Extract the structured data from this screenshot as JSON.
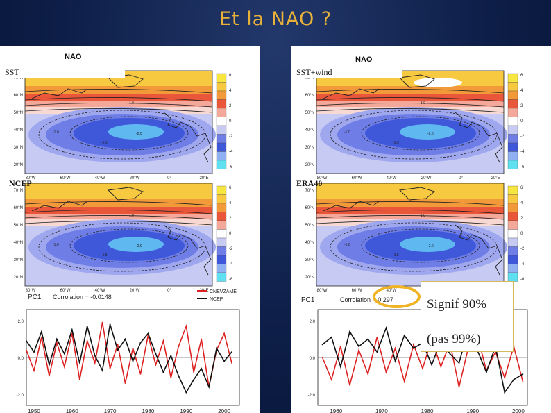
{
  "slide": {
    "title": "Et la NAO ?"
  },
  "maps": [
    {
      "label": "SST",
      "plot_title": "NAO"
    },
    {
      "label": "SST+wind",
      "plot_title": "NAO"
    },
    {
      "label": "NCEP",
      "plot_title": ""
    },
    {
      "label": "ERA40",
      "plot_title": ""
    }
  ],
  "lat_ticks": [
    "70°N",
    "60°N",
    "50°N",
    "40°N",
    "30°N",
    "20°N"
  ],
  "lon_ticks": [
    "80°W",
    "60°W",
    "40°W",
    "20°W",
    "0°",
    "20°E"
  ],
  "colorbar_ticks": [
    "6",
    "4",
    "2",
    "0",
    "-2",
    "-4",
    "-6"
  ],
  "contour_labels": [
    "1.0",
    "-1.0",
    "-1.5",
    "-2.0"
  ],
  "colors": {
    "title": "#e8b23a",
    "highlight": "#f0b323",
    "series_red": "#d22",
    "series_black": "#111"
  },
  "left_panel": {
    "pc_label": "PC1",
    "correlation_text": "Corrolation  =  -0.0148",
    "legend": [
      "CNEVZAME",
      "NCEP"
    ]
  },
  "right_panel": {
    "pc_label": "PC1",
    "correlation_text": "Corrolation  =  0.297"
  },
  "signif": {
    "line1": "Signif 90%",
    "line2": "(pas 99%)"
  },
  "chart_data": [
    {
      "type": "line",
      "x_ticks": [
        "1950",
        "1960",
        "1970",
        "1980",
        "1990",
        "2000"
      ],
      "y_ticks": [
        "2.0",
        "0.0",
        "-2.0"
      ],
      "ylim": [
        -2.6,
        2.6
      ],
      "xlim": [
        1948,
        2004
      ],
      "series": [
        {
          "name": "CNEVZAME",
          "color": "#d22",
          "x": [
            1948,
            1950,
            1952,
            1954,
            1956,
            1958,
            1960,
            1962,
            1964,
            1966,
            1968,
            1970,
            1972,
            1974,
            1976,
            1978,
            1980,
            1982,
            1984,
            1986,
            1988,
            1990,
            1992,
            1994,
            1996,
            1998,
            2000,
            2002
          ],
          "values": [
            0.4,
            -0.7,
            1.1,
            -1.0,
            0.8,
            -0.5,
            1.3,
            -1.2,
            0.9,
            -0.3,
            1.9,
            -0.6,
            0.7,
            -1.4,
            0.5,
            -0.9,
            1.2,
            -0.4,
            0.9,
            -1.1,
            0.6,
            1.7,
            -0.8,
            1.0,
            -1.6,
            0.4,
            1.3,
            -0.3
          ]
        },
        {
          "name": "NCEP",
          "color": "#111",
          "x": [
            1948,
            1950,
            1952,
            1954,
            1956,
            1958,
            1960,
            1962,
            1964,
            1966,
            1968,
            1970,
            1972,
            1974,
            1976,
            1978,
            1980,
            1982,
            1984,
            1986,
            1988,
            1990,
            1992,
            1994,
            1996,
            1998,
            2000,
            2002
          ],
          "values": [
            0.9,
            0.3,
            1.4,
            -0.4,
            1.0,
            0.2,
            1.5,
            -0.3,
            1.7,
            0.1,
            -0.7,
            1.8,
            0.4,
            1.0,
            -0.2,
            0.8,
            1.3,
            0.2,
            -0.8,
            0.1,
            -1.0,
            -1.9,
            -1.2,
            -0.6,
            -1.6,
            0.5,
            -0.2,
            0.3
          ]
        }
      ]
    },
    {
      "type": "line",
      "x_ticks": [
        "1960",
        "1970",
        "1980",
        "1990",
        "2000"
      ],
      "y_ticks": [
        "2.0",
        "0.0",
        "-2.0"
      ],
      "ylim": [
        -2.6,
        2.6
      ],
      "xlim": [
        1956,
        2002
      ],
      "series": [
        {
          "name": "red",
          "color": "#d22",
          "x": [
            1957,
            1959,
            1961,
            1963,
            1965,
            1967,
            1969,
            1971,
            1973,
            1975,
            1977,
            1979,
            1981,
            1983,
            1985,
            1987,
            1989,
            1991,
            1993,
            1995,
            1997,
            1999,
            2001
          ],
          "values": [
            0.0,
            -1.2,
            0.6,
            -1.5,
            0.4,
            -0.9,
            1.1,
            -0.8,
            0.5,
            -1.3,
            0.7,
            -0.6,
            1.0,
            -0.5,
            0.8,
            -1.6,
            0.5,
            1.2,
            -0.7,
            0.3,
            -1.1,
            0.6,
            -1.3
          ]
        },
        {
          "name": "black",
          "color": "#111",
          "x": [
            1957,
            1959,
            1961,
            1963,
            1965,
            1967,
            1969,
            1971,
            1973,
            1975,
            1977,
            1979,
            1981,
            1983,
            1985,
            1987,
            1989,
            1991,
            1993,
            1995,
            1997,
            1999,
            2001
          ],
          "values": [
            0.7,
            1.1,
            -0.5,
            1.4,
            0.6,
            1.0,
            0.3,
            1.6,
            -0.2,
            1.2,
            0.5,
            0.8,
            -0.4,
            0.9,
            0.2,
            -0.3,
            1.5,
            0.4,
            -0.8,
            0.6,
            -1.9,
            -1.2,
            -0.9
          ]
        }
      ]
    }
  ]
}
